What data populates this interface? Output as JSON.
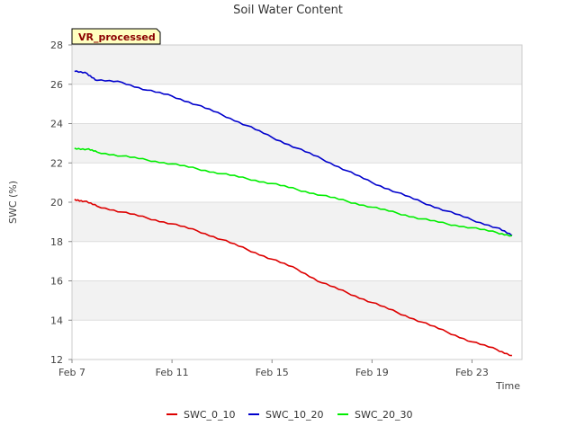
{
  "chart_data": {
    "type": "line",
    "title": "Soil Water Content",
    "xlabel": "Time",
    "ylabel": "SWC (%)",
    "badge": "VR_processed",
    "x_ticks": [
      "Feb 7",
      "Feb 11",
      "Feb 15",
      "Feb 19",
      "Feb 23"
    ],
    "x_tick_days": [
      7,
      11,
      15,
      19,
      23
    ],
    "xlim": [
      "Feb 7",
      "Feb 25"
    ],
    "ylim": [
      12,
      28
    ],
    "y_ticks": [
      12,
      14,
      16,
      18,
      20,
      22,
      24,
      26,
      28
    ],
    "grid": true,
    "legend_position": "bottom",
    "colors": {
      "plot_band": "#f2f2f2",
      "grid": "#dddddd",
      "badge_fill": "#ffffc0",
      "badge_text": "#8b0000"
    },
    "series": [
      {
        "name": "SWC_0_10",
        "color": "#dd0000",
        "x": [
          "Feb 7.1",
          "Feb 7.5",
          "Feb 8",
          "Feb 9",
          "Feb 10",
          "Feb 11",
          "Feb 12",
          "Feb 13",
          "Feb 14",
          "Feb 15",
          "Feb 16",
          "Feb 17",
          "Feb 18",
          "Feb 19",
          "Feb 20",
          "Feb 21",
          "Feb 22",
          "Feb 23",
          "Feb 24",
          "Feb 24.6"
        ],
        "y": [
          20.15,
          20.05,
          19.8,
          19.5,
          19.2,
          18.9,
          18.55,
          18.1,
          17.6,
          17.1,
          16.6,
          15.9,
          15.4,
          14.9,
          14.4,
          13.9,
          13.4,
          12.9,
          12.5,
          12.2
        ]
      },
      {
        "name": "SWC_10_20",
        "color": "#0000cc",
        "x": [
          "Feb 7.1",
          "Feb 7.6",
          "Feb 8",
          "Feb 9",
          "Feb 10",
          "Feb 11",
          "Feb 12",
          "Feb 13",
          "Feb 14",
          "Feb 15",
          "Feb 16",
          "Feb 17",
          "Feb 18",
          "Feb 19",
          "Feb 20",
          "Feb 21",
          "Feb 22",
          "Feb 23",
          "Feb 24",
          "Feb 24.6"
        ],
        "y": [
          26.65,
          26.55,
          26.2,
          26.1,
          25.7,
          25.4,
          24.95,
          24.45,
          23.9,
          23.3,
          22.75,
          22.2,
          21.6,
          21.0,
          20.5,
          20.0,
          19.55,
          19.1,
          18.7,
          18.3
        ]
      },
      {
        "name": "SWC_20_30",
        "color": "#00ee00",
        "x": [
          "Feb 7.1",
          "Feb 7.6",
          "Feb 8",
          "Feb 9",
          "Feb 10",
          "Feb 11",
          "Feb 12",
          "Feb 13",
          "Feb 14",
          "Feb 15",
          "Feb 16",
          "Feb 17",
          "Feb 18",
          "Feb 19",
          "Feb 20",
          "Feb 21",
          "Feb 22",
          "Feb 23",
          "Feb 24",
          "Feb 24.6"
        ],
        "y": [
          22.75,
          22.7,
          22.55,
          22.35,
          22.15,
          21.95,
          21.7,
          21.45,
          21.2,
          20.95,
          20.65,
          20.35,
          20.05,
          19.75,
          19.45,
          19.15,
          18.9,
          18.7,
          18.45,
          18.3
        ]
      }
    ]
  }
}
